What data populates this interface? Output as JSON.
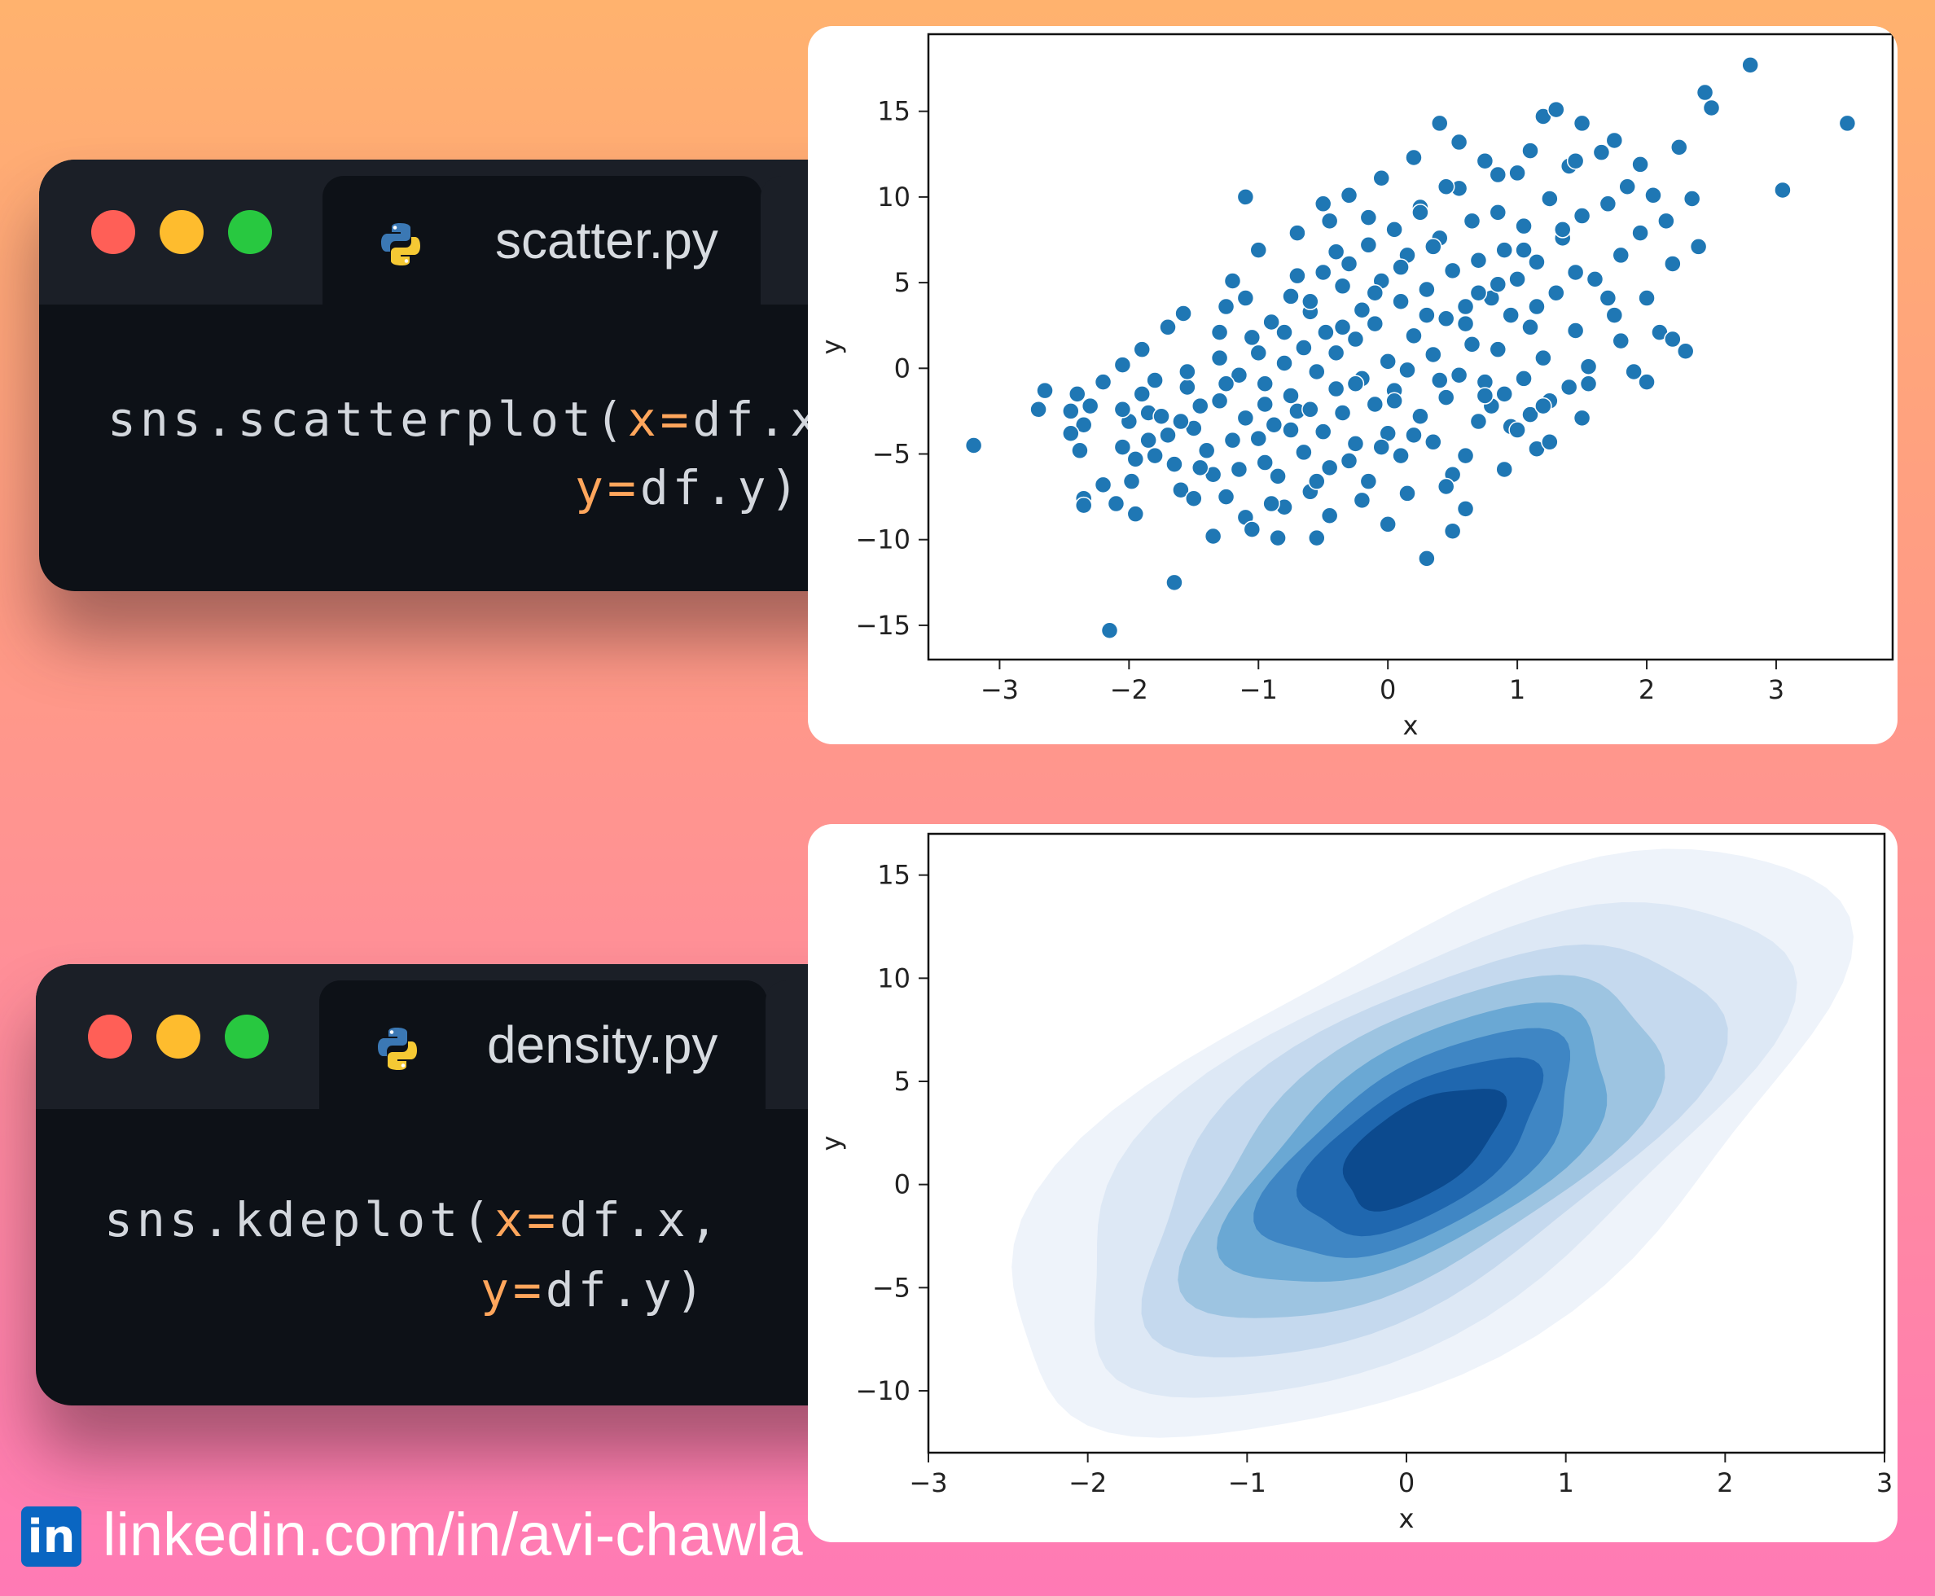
{
  "colors": {
    "close_dot": "#ff5f57",
    "minimize_dot": "#febc2e",
    "maximize_dot": "#28c840",
    "code_argument": "#ffa65c",
    "scatter_marker": "#1f77b4",
    "linkedin_blue": "#0a66c2"
  },
  "windows": [
    {
      "tab_label": "scatter.py",
      "tab_icon": "python-icon",
      "code": {
        "line1_fn": "sns.scatterplot(",
        "line1_arg": "x=",
        "line1_val": "df.x,",
        "line2_arg": "y=",
        "line2_val": "df.y)"
      }
    },
    {
      "tab_label": "density.py",
      "tab_icon": "python-icon",
      "code": {
        "line1_fn": "sns.kdeplot(",
        "line1_arg": "x=",
        "line1_val": "df.x,",
        "line2_arg": "y=",
        "line2_val": "df.y)"
      }
    }
  ],
  "chart_data": [
    {
      "type": "scatter",
      "xlabel": "x",
      "ylabel": "y",
      "xlim": [
        -3.55,
        3.9
      ],
      "ylim": [
        -17,
        19.5
      ],
      "xticks": [
        -3,
        -2,
        -1,
        0,
        1,
        2,
        3
      ],
      "yticks": [
        -15,
        -10,
        -5,
        0,
        5,
        10,
        15
      ],
      "tick_labels_x": [
        "−3",
        "−2",
        "−1",
        "0",
        "1",
        "2",
        "3"
      ],
      "tick_labels_y": [
        "−15",
        "−10",
        "−5",
        "0",
        "5",
        "10",
        "15"
      ],
      "grid": false,
      "points": [
        [
          -3.2,
          -4.5
        ],
        [
          -2.65,
          -1.3
        ],
        [
          -2.7,
          -2.4
        ],
        [
          -2.4,
          -1.5
        ],
        [
          -2.45,
          -2.5
        ],
        [
          -2.35,
          -3.3
        ],
        [
          -2.45,
          -3.8
        ],
        [
          -2.38,
          -4.8
        ],
        [
          -2.35,
          -7.6
        ],
        [
          -2.35,
          -8
        ],
        [
          -2.15,
          -15.3
        ],
        [
          -2.2,
          -6.8
        ],
        [
          -2.1,
          -7.9
        ],
        [
          -2.05,
          0.2
        ],
        [
          -2.2,
          -0.8
        ],
        [
          -2.3,
          -2.2
        ],
        [
          -2.0,
          -3.1
        ],
        [
          -2.05,
          -4.6
        ],
        [
          -1.98,
          -6.6
        ],
        [
          -1.95,
          -8.5
        ],
        [
          -1.95,
          -5.3
        ],
        [
          -1.9,
          -1.5
        ],
        [
          -1.85,
          -2.6
        ],
        [
          -1.85,
          -4.2
        ],
        [
          -1.8,
          -0.7
        ],
        [
          -1.75,
          -2.8
        ],
        [
          -1.7,
          -3.9
        ],
        [
          -1.65,
          -5.6
        ],
        [
          -1.6,
          -7.1
        ],
        [
          -1.65,
          -12.5
        ],
        [
          -1.7,
          2.4
        ],
        [
          -1.58,
          3.2
        ],
        [
          -1.55,
          -1.1
        ],
        [
          -1.5,
          -3.5
        ],
        [
          -1.45,
          -2.2
        ],
        [
          -1.4,
          -4.8
        ],
        [
          -1.35,
          -6.2
        ],
        [
          -1.3,
          0.6
        ],
        [
          -1.3,
          -1.9
        ],
        [
          -1.25,
          -7.5
        ],
        [
          -1.25,
          3.6
        ],
        [
          -1.2,
          5.1
        ],
        [
          -1.15,
          -0.4
        ],
        [
          -1.1,
          -2.9
        ],
        [
          -1.1,
          -8.7
        ],
        [
          -1.05,
          -9.4
        ],
        [
          -1.05,
          1.8
        ],
        [
          -1.0,
          6.9
        ],
        [
          -1.0,
          -4.1
        ],
        [
          -0.95,
          -5.5
        ],
        [
          -0.95,
          -0.9
        ],
        [
          -1.1,
          10
        ],
        [
          -0.9,
          2.7
        ],
        [
          -0.88,
          -3.3
        ],
        [
          -0.85,
          -6.3
        ],
        [
          -0.8,
          -8.1
        ],
        [
          -0.8,
          0.3
        ],
        [
          -0.75,
          4.2
        ],
        [
          -0.75,
          -1.6
        ],
        [
          -0.7,
          -2.5
        ],
        [
          -0.7,
          7.9
        ],
        [
          -0.65,
          -4.9
        ],
        [
          -0.65,
          1.2
        ],
        [
          -0.6,
          -7.2
        ],
        [
          -0.6,
          3.3
        ],
        [
          -0.55,
          -9.9
        ],
        [
          -0.55,
          -0.2
        ],
        [
          -0.5,
          5.6
        ],
        [
          -0.5,
          -3.7
        ],
        [
          -0.48,
          2.1
        ],
        [
          -0.45,
          8.6
        ],
        [
          -0.45,
          -5.8
        ],
        [
          -0.4,
          -1.2
        ],
        [
          -0.4,
          0.9
        ],
        [
          -0.35,
          4.8
        ],
        [
          -0.35,
          -2.6
        ],
        [
          -0.3,
          10.1
        ],
        [
          -0.3,
          6.1
        ],
        [
          -0.25,
          -4.4
        ],
        [
          -0.25,
          1.7
        ],
        [
          -0.2,
          3.4
        ],
        [
          -0.2,
          -0.6
        ],
        [
          -0.15,
          7.2
        ],
        [
          -0.15,
          -6.6
        ],
        [
          -0.1,
          -2.1
        ],
        [
          -0.1,
          2.6
        ],
        [
          -0.05,
          11.1
        ],
        [
          -0.05,
          5.1
        ],
        [
          0.0,
          -3.8
        ],
        [
          0.0,
          0.4
        ],
        [
          0.05,
          8.1
        ],
        [
          0.05,
          -1.3
        ],
        [
          0.1,
          3.9
        ],
        [
          0.1,
          -5.1
        ],
        [
          0.15,
          6.6
        ],
        [
          0.15,
          -0.1
        ],
        [
          0.2,
          12.3
        ],
        [
          0.2,
          1.9
        ],
        [
          0.25,
          -2.8
        ],
        [
          0.25,
          9.4
        ],
        [
          0.3,
          -11.1
        ],
        [
          0.3,
          4.6
        ],
        [
          0.35,
          -4.3
        ],
        [
          0.35,
          0.8
        ],
        [
          0.4,
          7.6
        ],
        [
          0.4,
          14.3
        ],
        [
          0.45,
          -1.7
        ],
        [
          0.45,
          2.9
        ],
        [
          0.5,
          5.7
        ],
        [
          0.5,
          -6.2
        ],
        [
          0.55,
          10.5
        ],
        [
          0.55,
          -0.4
        ],
        [
          0.6,
          3.6
        ],
        [
          0.6,
          -8.2
        ],
        [
          0.65,
          8.6
        ],
        [
          0.65,
          1.4
        ],
        [
          0.7,
          -3.1
        ],
        [
          0.7,
          6.3
        ],
        [
          0.75,
          12.1
        ],
        [
          0.75,
          -0.8
        ],
        [
          0.8,
          4.1
        ],
        [
          0.8,
          -2.2
        ],
        [
          0.85,
          9.1
        ],
        [
          0.85,
          1.1
        ],
        [
          0.9,
          6.9
        ],
        [
          0.9,
          -1.5
        ],
        [
          0.95,
          3.1
        ],
        [
          0.95,
          -3.4
        ],
        [
          1.0,
          11.4
        ],
        [
          1.0,
          5.2
        ],
        [
          1.05,
          -0.6
        ],
        [
          1.05,
          8.3
        ],
        [
          1.1,
          2.4
        ],
        [
          1.1,
          -2.7
        ],
        [
          1.15,
          6.2
        ],
        [
          1.15,
          -4.7
        ],
        [
          1.2,
          14.7
        ],
        [
          1.2,
          0.6
        ],
        [
          1.25,
          9.9
        ],
        [
          1.25,
          -1.9
        ],
        [
          1.3,
          4.4
        ],
        [
          1.3,
          15.1
        ],
        [
          1.35,
          7.6
        ],
        [
          1.4,
          -1.1
        ],
        [
          1.4,
          11.8
        ],
        [
          1.45,
          2.2
        ],
        [
          1.5,
          8.9
        ],
        [
          1.5,
          14.3
        ],
        [
          1.55,
          0.1
        ],
        [
          1.6,
          5.2
        ],
        [
          1.65,
          12.6
        ],
        [
          1.7,
          9.6
        ],
        [
          1.75,
          3.1
        ],
        [
          1.8,
          6.6
        ],
        [
          1.85,
          10.6
        ],
        [
          1.9,
          -0.2
        ],
        [
          1.95,
          7.9
        ],
        [
          2.0,
          4.1
        ],
        [
          2.05,
          10.1
        ],
        [
          2.1,
          2.1
        ],
        [
          2.15,
          8.6
        ],
        [
          2.2,
          6.1
        ],
        [
          2.25,
          12.9
        ],
        [
          2.3,
          1.0
        ],
        [
          2.35,
          9.9
        ],
        [
          2.4,
          7.1
        ],
        [
          2.45,
          16.1
        ],
        [
          2.5,
          15.2
        ],
        [
          2.8,
          17.7
        ],
        [
          3.05,
          10.4
        ],
        [
          3.55,
          14.3
        ],
        [
          -0.55,
          -6.6
        ],
        [
          -0.2,
          -7.7
        ],
        [
          0.15,
          -7.3
        ],
        [
          0.5,
          -9.5
        ],
        [
          -0.85,
          -9.9
        ],
        [
          -1.35,
          -9.8
        ],
        [
          -1.5,
          -7.6
        ],
        [
          -0.9,
          -7.9
        ],
        [
          0.0,
          -9.1
        ],
        [
          0.45,
          -6.9
        ],
        [
          -1.6,
          -3.1
        ],
        [
          -1.45,
          -5.8
        ],
        [
          -1.2,
          -4.2
        ],
        [
          -1.15,
          -5.9
        ],
        [
          -0.95,
          -2.1
        ],
        [
          -0.75,
          -3.6
        ],
        [
          -0.6,
          -2.4
        ],
        [
          -0.3,
          -5.4
        ],
        [
          -0.05,
          -4.6
        ],
        [
          0.2,
          -3.9
        ],
        [
          -1.0,
          0.9
        ],
        [
          -0.8,
          2.1
        ],
        [
          -0.6,
          3.9
        ],
        [
          -0.35,
          2.4
        ],
        [
          -0.1,
          4.4
        ],
        [
          0.3,
          3.1
        ],
        [
          0.6,
          2.6
        ],
        [
          0.85,
          4.9
        ],
        [
          1.15,
          3.6
        ],
        [
          1.45,
          5.6
        ],
        [
          -1.3,
          2.1
        ],
        [
          -1.1,
          4.1
        ],
        [
          -0.7,
          5.4
        ],
        [
          -0.4,
          6.8
        ],
        [
          0.1,
          5.9
        ],
        [
          0.35,
          7.1
        ],
        [
          0.7,
          4.4
        ],
        [
          1.05,
          6.9
        ],
        [
          1.35,
          8.1
        ],
        [
          1.7,
          4.1
        ],
        [
          -0.25,
          -0.9
        ],
        [
          0.05,
          -1.9
        ],
        [
          0.4,
          -0.7
        ],
        [
          0.75,
          -1.6
        ],
        [
          1.0,
          -3.6
        ],
        [
          1.2,
          -2.2
        ],
        [
          1.55,
          -0.9
        ],
        [
          1.8,
          1.6
        ],
        [
          2.0,
          -0.8
        ],
        [
          2.2,
          1.7
        ],
        [
          -2.05,
          -2.4
        ],
        [
          -1.8,
          -5.1
        ],
        [
          -1.55,
          -0.2
        ],
        [
          -1.9,
          1.1
        ],
        [
          -1.25,
          -0.9
        ],
        [
          -0.45,
          -8.6
        ],
        [
          0.6,
          -5.1
        ],
        [
          0.9,
          -5.9
        ],
        [
          1.25,
          -4.3
        ],
        [
          1.5,
          -2.9
        ],
        [
          -0.15,
          8.8
        ],
        [
          0.45,
          10.6
        ],
        [
          0.85,
          11.3
        ],
        [
          1.1,
          12.7
        ],
        [
          1.45,
          12.1
        ],
        [
          1.75,
          13.3
        ],
        [
          1.95,
          11.9
        ],
        [
          0.25,
          9.1
        ],
        [
          -0.5,
          9.6
        ],
        [
          0.55,
          13.2
        ]
      ]
    },
    {
      "type": "kde",
      "xlabel": "x",
      "ylabel": "y",
      "xlim": [
        -3,
        3
      ],
      "ylim": [
        -13,
        17
      ],
      "xticks": [
        -3,
        -2,
        -1,
        0,
        1,
        2,
        3
      ],
      "yticks": [
        -10,
        -5,
        0,
        5,
        10,
        15
      ],
      "tick_labels_x": [
        "−3",
        "−2",
        "−1",
        "0",
        "1",
        "2",
        "3"
      ],
      "tick_labels_y": [
        "−10",
        "−5",
        "0",
        "5",
        "10",
        "15"
      ],
      "grid": false,
      "center": [
        0.1,
        1.8
      ],
      "levels": [
        {
          "sx": 2.6,
          "sy": 11.2,
          "color": "#eef3fa"
        },
        {
          "sx": 2.2,
          "sy": 9.4,
          "color": "#dde8f5"
        },
        {
          "sx": 1.8,
          "sy": 7.9,
          "color": "#c5d9ee"
        },
        {
          "sx": 1.48,
          "sy": 6.6,
          "color": "#9dc4e1"
        },
        {
          "sx": 1.2,
          "sy": 5.4,
          "color": "#6aa8d4"
        },
        {
          "sx": 0.98,
          "sy": 4.4,
          "color": "#3f86c4"
        },
        {
          "sx": 0.75,
          "sy": 3.4,
          "color": "#1f67af"
        },
        {
          "sx": 0.5,
          "sy": 2.4,
          "color": "#0c4a8e"
        }
      ]
    }
  ],
  "footer": {
    "badge": "in",
    "text": "linkedin.com/in/avi-chawla"
  }
}
